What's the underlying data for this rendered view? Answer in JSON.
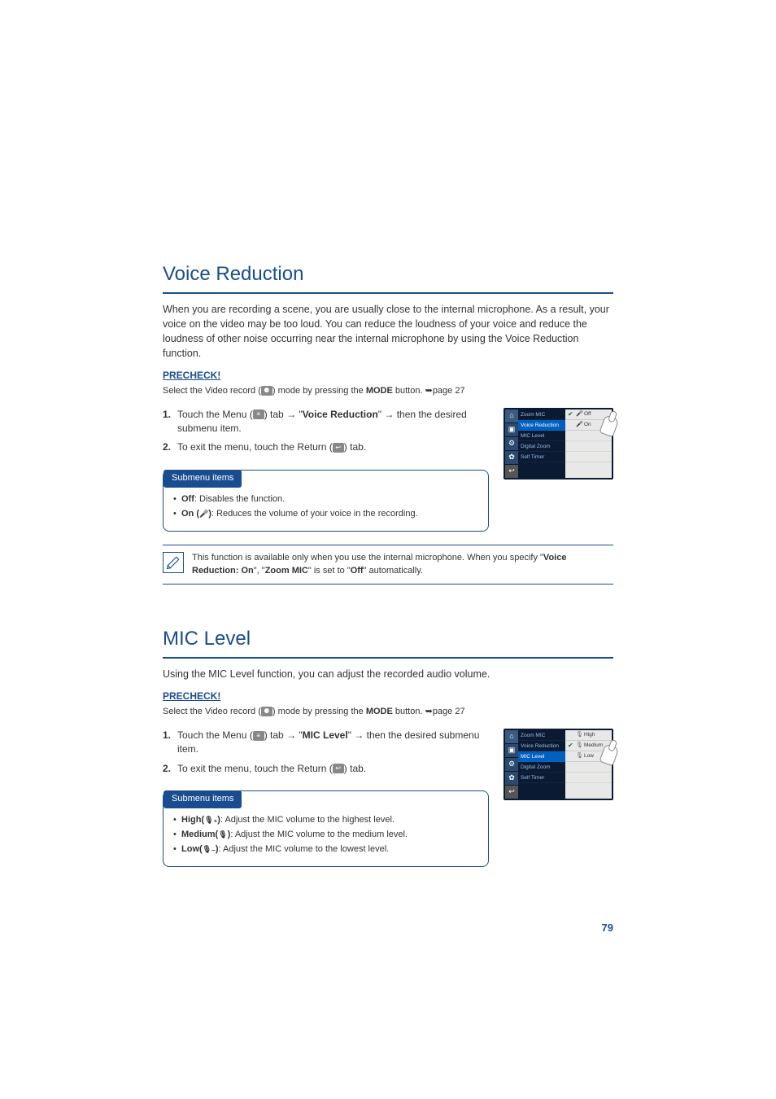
{
  "page_number": "79",
  "voice_reduction": {
    "title": "Voice Reduction",
    "intro": "When you are recording a scene, you are usually close to the internal microphone. As a result, your voice on the video may be too loud. You can reduce the loudness of your voice and reduce the loudness of other noise occurring near the internal microphone by using the Voice Reduction function.",
    "precheck_label": "PRECHECK!",
    "precheck_pre": "Select the Video record (",
    "precheck_post": ") mode by pressing the ",
    "precheck_bold": "MODE",
    "precheck_tail": " button. ",
    "precheck_page": "page 27",
    "step1_num": "1.",
    "step1_a": "Touch the Menu (",
    "step1_b": ") tab ",
    "step1_c": " \"",
    "step1_bold": "Voice Reduction",
    "step1_d": "\" ",
    "step1_e": " then the desired submenu item.",
    "step2_num": "2.",
    "step2_a": "To exit the menu, touch the Return (",
    "step2_b": ") tab.",
    "sub_header": "Submenu items",
    "sub_off_label": "Off",
    "sub_off_text": ": Disables the function.",
    "sub_on_label": "On (",
    "sub_on_label2": ")",
    "sub_on_text": ": Reduces the volume of your voice in the recording.",
    "note_a": "This function is available only when you use the internal microphone. When you specify \"",
    "note_b": "Voice Reduction: On",
    "note_c": "\", \"",
    "note_d": "Zoom MIC",
    "note_e": "\" is set to \"",
    "note_f": "Off",
    "note_g": "\" automatically.",
    "shot": {
      "menu": [
        "Zoom MIC",
        "Voice Reduction",
        "MIC Level",
        "Digital Zoom",
        "Self Timer"
      ],
      "highlight_index": 1,
      "opts": [
        {
          "checked": true,
          "icon": "🎤",
          "label": "Off"
        },
        {
          "checked": false,
          "icon": "🎤",
          "label": "On"
        }
      ]
    }
  },
  "mic_level": {
    "title": "MIC Level",
    "intro": "Using the MIC Level function, you can adjust the recorded audio volume.",
    "precheck_label": "PRECHECK!",
    "precheck_pre": "Select the Video record (",
    "precheck_post": ") mode by pressing the ",
    "precheck_bold": "MODE",
    "precheck_tail": " button. ",
    "precheck_page": "page 27",
    "step1_num": "1.",
    "step1_a": "Touch the Menu (",
    "step1_b": ") tab ",
    "step1_c": " \"",
    "step1_bold": "MIC Level",
    "step1_d": "\" ",
    "step1_e": " then the desired submenu item.",
    "step2_num": "2.",
    "step2_a": "To exit the menu, touch the Return (",
    "step2_b": ") tab.",
    "sub_header": "Submenu items",
    "sub_high_label": "High(",
    "sub_high_label2": ")",
    "sub_high_text": ": Adjust the MIC volume to the highest level.",
    "sub_med_label": "Medium(",
    "sub_med_label2": ")",
    "sub_med_text": ": Adjust the MIC volume to the medium level.",
    "sub_low_label": "Low(",
    "sub_low_label2": ")",
    "sub_low_text": ": Adjust the MIC volume to the lowest level.",
    "shot": {
      "menu": [
        "Zoom MIC",
        "Voice Reduction",
        "MIC Level",
        "Digital Zoom",
        "Self Timer"
      ],
      "highlight_index": 2,
      "opts": [
        {
          "checked": false,
          "icon": "🎙",
          "label": "High"
        },
        {
          "checked": true,
          "icon": "🎙",
          "label": "Medium"
        },
        {
          "checked": false,
          "icon": "🎙",
          "label": "Low"
        }
      ]
    }
  },
  "colors": {
    "brand_blue": "#1a4d8f",
    "screenshot_dark": "#0a1a33",
    "screenshot_highlight": "#0060c0",
    "check_green": "#0a7a2a"
  }
}
